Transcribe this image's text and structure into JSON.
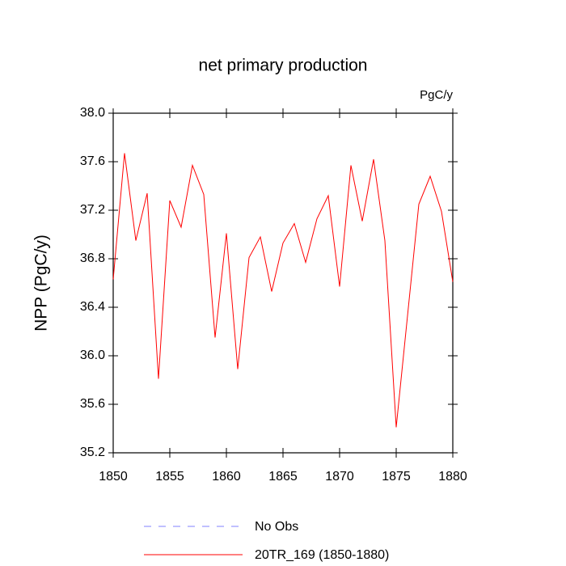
{
  "chart_data": {
    "type": "line",
    "title": "net primary production",
    "units": "PgC/y",
    "ylabel": "NPP  (PgC/y)",
    "x": [
      1850,
      1851,
      1852,
      1853,
      1854,
      1855,
      1856,
      1857,
      1858,
      1859,
      1860,
      1861,
      1862,
      1863,
      1864,
      1865,
      1866,
      1867,
      1868,
      1869,
      1870,
      1871,
      1872,
      1873,
      1874,
      1875,
      1876,
      1877,
      1878,
      1879,
      1880
    ],
    "series": [
      {
        "name": "20TR_169 (1850-1880)",
        "color": "#ff0000",
        "values": [
          36.63,
          37.67,
          36.95,
          37.34,
          35.81,
          37.28,
          37.06,
          37.57,
          37.33,
          36.15,
          37.01,
          35.89,
          36.81,
          36.98,
          36.53,
          36.93,
          37.09,
          36.77,
          37.13,
          37.32,
          36.57,
          37.57,
          37.11,
          37.62,
          36.95,
          35.41,
          36.33,
          37.25,
          37.48,
          37.19,
          36.61
        ]
      }
    ],
    "legend_entries": [
      {
        "name": "No Obs",
        "color": "#8080ff",
        "dashed": true
      },
      {
        "name": "20TR_169 (1850-1880)",
        "color": "#ff0000",
        "dashed": false
      }
    ],
    "xlim": [
      1850,
      1880
    ],
    "xticks": [
      1850,
      1855,
      1860,
      1865,
      1870,
      1875,
      1880
    ],
    "ylim": [
      35.2,
      38.0
    ],
    "yticks": [
      {
        "value": 35.2,
        "label": "35.2"
      },
      {
        "value": 35.6,
        "label": "35.6"
      },
      {
        "value": 36.0,
        "label": "36.0"
      },
      {
        "value": 36.4,
        "label": "36.4"
      },
      {
        "value": 36.8,
        "label": "36.8"
      },
      {
        "value": 37.2,
        "label": "37.2"
      },
      {
        "value": 37.6,
        "label": "37.6"
      },
      {
        "value": 38.0,
        "label": "38.0"
      }
    ],
    "grid": false
  }
}
